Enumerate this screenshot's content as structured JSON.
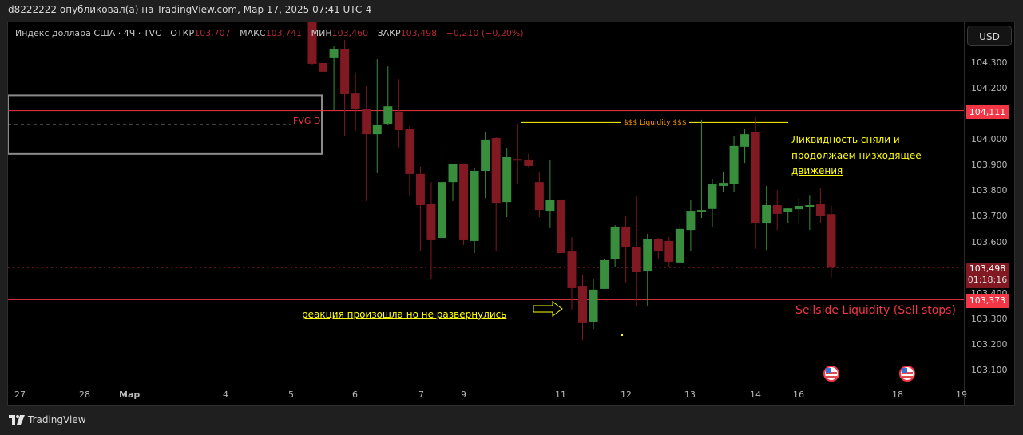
{
  "header": {
    "published": "d8222222 опубликовал(а) на TradingView.com, Мар 17, 2025 07:41 UTC-4"
  },
  "legend": {
    "symbol": "Индекс доллара США · 4Ч · TVC",
    "open_label": "ОТКР",
    "open": "103,707",
    "high_label": "МАКС",
    "high": "103,741",
    "low_label": "МИН",
    "low": "103,460",
    "close_label": "ЗАКР",
    "close": "103,498",
    "change": "−0,210 (−0,20%)"
  },
  "currency_button": "USD",
  "price_axis": {
    "ticks": [
      "104,300",
      "104,200",
      "104,000",
      "103,900",
      "103,800",
      "103,700",
      "103,600",
      "103,400",
      "103,300",
      "103,200",
      "103,100"
    ],
    "tag_high": "104,111",
    "tag_last": "103,498",
    "countdown": "01:18:16",
    "tag_low": "103,373"
  },
  "time_axis": [
    "27",
    "28",
    "Мар",
    "4",
    "5",
    "6",
    "7",
    "9",
    "11",
    "12",
    "13",
    "14",
    "16",
    "18",
    "19"
  ],
  "annotations": {
    "fvg": "FVG D",
    "liquidity": "$$$ Liquidity $$$",
    "note_right": [
      "Ликвидность сняли и",
      "продолжаем низходящее",
      "движения"
    ],
    "note_left": "реакция произошла но не развернулись",
    "sellside": "Sellside Liquidity (Sell stops)"
  },
  "footer": {
    "brand": "TradingView"
  },
  "colors": {
    "up": "#388e3c",
    "down": "#801922",
    "level": "#f23645",
    "annotation": "#ffff00",
    "liquidity_label": "#ff9800",
    "background": "#000000"
  },
  "chart_data": {
    "type": "candlestick",
    "symbol": "Индекс доллара США",
    "timeframe": "4Ч",
    "ylim": [
      103.05,
      104.45
    ],
    "levels": {
      "high_line": 104.111,
      "sellside_line": 103.373,
      "last_price": 103.498,
      "liquidity_line": 104.065
    },
    "fvg_zone": [
      103.942,
      104.171
    ],
    "candles": [
      [
        104.46,
        104.5,
        104.29,
        104.294
      ],
      [
        104.297,
        104.297,
        104.253,
        104.263
      ],
      [
        104.316,
        104.362,
        104.113,
        104.35
      ],
      [
        104.353,
        104.387,
        104.013,
        104.175
      ],
      [
        104.178,
        104.259,
        104.032,
        104.119
      ],
      [
        104.119,
        104.206,
        103.758,
        104.019
      ],
      [
        104.019,
        104.312,
        103.867,
        104.057
      ],
      [
        104.06,
        104.284,
        104.054,
        104.128
      ],
      [
        104.107,
        104.234,
        103.967,
        104.035
      ],
      [
        104.038,
        104.05,
        103.78,
        103.864
      ],
      [
        103.864,
        103.892,
        103.561,
        103.742
      ],
      [
        103.745,
        103.832,
        103.452,
        103.605
      ],
      [
        103.614,
        103.973,
        103.599,
        103.832
      ],
      [
        103.832,
        103.901,
        103.758,
        103.901
      ],
      [
        103.901,
        103.905,
        103.586,
        103.605
      ],
      [
        103.602,
        103.885,
        103.555,
        103.876
      ],
      [
        103.876,
        104.026,
        103.77,
        103.998
      ],
      [
        104.004,
        104.007,
        103.564,
        103.751
      ],
      [
        103.754,
        103.963,
        103.695,
        103.929
      ],
      [
        103.922,
        104.06,
        103.823,
        103.917
      ],
      [
        103.92,
        103.942,
        103.89,
        103.895
      ],
      [
        103.832,
        103.873,
        103.695,
        103.723
      ],
      [
        103.72,
        103.92,
        103.652,
        103.761
      ],
      [
        103.764,
        103.764,
        103.337,
        103.555
      ],
      [
        103.561,
        103.617,
        103.334,
        103.418
      ],
      [
        103.427,
        103.468,
        103.215,
        103.281
      ],
      [
        103.284,
        103.452,
        103.259,
        103.412
      ],
      [
        103.415,
        103.533,
        103.415,
        103.527
      ],
      [
        103.53,
        103.664,
        103.499,
        103.655
      ],
      [
        103.658,
        103.701,
        103.437,
        103.58
      ],
      [
        103.58,
        103.779,
        103.349,
        103.48
      ],
      [
        103.483,
        103.63,
        103.346,
        103.608
      ],
      [
        103.608,
        103.614,
        103.53,
        103.561
      ],
      [
        103.602,
        103.617,
        103.502,
        103.521
      ],
      [
        103.518,
        103.667,
        103.518,
        103.649
      ],
      [
        103.645,
        103.761,
        103.564,
        103.72
      ],
      [
        103.714,
        104.076,
        103.692,
        103.723
      ],
      [
        103.727,
        103.845,
        103.655,
        103.823
      ],
      [
        103.817,
        103.873,
        103.795,
        103.829
      ],
      [
        103.826,
        104.013,
        103.795,
        103.973
      ],
      [
        103.97,
        104.041,
        103.907,
        104.019
      ],
      [
        104.026,
        104.085,
        103.571,
        103.67
      ],
      [
        103.67,
        103.817,
        103.567,
        103.742
      ],
      [
        103.742,
        103.801,
        103.645,
        103.708
      ],
      [
        103.714,
        103.733,
        103.67,
        103.729
      ],
      [
        103.726,
        103.77,
        103.673,
        103.739
      ],
      [
        103.736,
        103.782,
        103.645,
        103.742
      ],
      [
        103.745,
        103.807,
        103.673,
        103.701
      ],
      [
        103.707,
        103.741,
        103.46,
        103.498
      ]
    ]
  }
}
